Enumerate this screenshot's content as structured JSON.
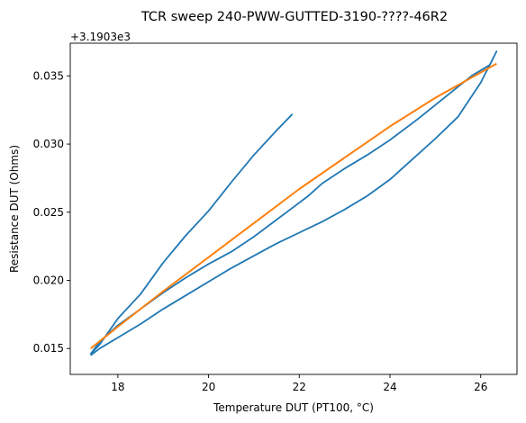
{
  "chart_data": {
    "type": "line",
    "title": "TCR sweep 240-PWW-GUTTED-3190-????-46R2",
    "xlabel": "Temperature DUT (PT100, °C)",
    "ylabel": "Resistance DUT (Ohms)",
    "y_offset_label": "+3.1903e3",
    "xlim": [
      16.95,
      26.8
    ],
    "ylim": [
      0.0131,
      0.0374
    ],
    "x_ticks": [
      18,
      20,
      22,
      24,
      26
    ],
    "x_tick_labels": [
      "18",
      "20",
      "22",
      "24",
      "26"
    ],
    "y_ticks": [
      0.015,
      0.02,
      0.025,
      0.03,
      0.035
    ],
    "y_tick_labels": [
      "0.015",
      "0.020",
      "0.025",
      "0.030",
      "0.035"
    ],
    "grid": false,
    "colors": {
      "series_measured": "#1f77b4",
      "series_fit": "#ff7f0e"
    },
    "series": [
      {
        "kind": "measured",
        "color": "#1f77b4",
        "points": [
          [
            17.4,
            0.0145
          ],
          [
            17.6,
            0.015
          ],
          [
            18.0,
            0.0158
          ],
          [
            18.5,
            0.0168
          ],
          [
            19.0,
            0.0179
          ],
          [
            19.5,
            0.0189
          ],
          [
            20.0,
            0.0199
          ],
          [
            20.5,
            0.0209
          ],
          [
            21.0,
            0.0218
          ],
          [
            21.5,
            0.0227
          ],
          [
            22.0,
            0.0235
          ],
          [
            22.5,
            0.0243
          ],
          [
            23.0,
            0.0252
          ],
          [
            23.5,
            0.0262
          ],
          [
            24.0,
            0.0274
          ],
          [
            24.5,
            0.0289
          ],
          [
            25.0,
            0.0304
          ],
          [
            25.5,
            0.032
          ],
          [
            26.0,
            0.0345
          ],
          [
            26.35,
            0.0368
          ],
          [
            26.2,
            0.0358
          ],
          [
            25.8,
            0.035
          ],
          [
            25.2,
            0.0334
          ],
          [
            24.6,
            0.0318
          ],
          [
            24.0,
            0.0303
          ],
          [
            23.5,
            0.0292
          ],
          [
            23.0,
            0.0282
          ],
          [
            22.5,
            0.0271
          ],
          [
            22.2,
            0.0262
          ],
          [
            21.8,
            0.0252
          ],
          [
            21.4,
            0.0242
          ],
          [
            21.0,
            0.0232
          ],
          [
            20.5,
            0.0221
          ],
          [
            20.0,
            0.0212
          ],
          [
            19.5,
            0.0202
          ],
          [
            19.0,
            0.0191
          ],
          [
            18.5,
            0.0179
          ],
          [
            18.0,
            0.0167
          ],
          [
            17.6,
            0.0155
          ],
          [
            17.4,
            0.0146
          ],
          [
            17.6,
            0.0153
          ],
          [
            18.0,
            0.0172
          ],
          [
            18.5,
            0.019
          ],
          [
            19.0,
            0.0213
          ],
          [
            19.5,
            0.0233
          ],
          [
            20.0,
            0.0251
          ],
          [
            20.5,
            0.0272
          ],
          [
            21.0,
            0.0292
          ],
          [
            21.5,
            0.031
          ],
          [
            21.85,
            0.0322
          ]
        ]
      },
      {
        "kind": "fit",
        "color": "#ff7f0e",
        "points": [
          [
            17.4,
            0.015
          ],
          [
            18.0,
            0.0166
          ],
          [
            19.0,
            0.0192
          ],
          [
            20.0,
            0.0217
          ],
          [
            21.0,
            0.0242
          ],
          [
            22.0,
            0.0267
          ],
          [
            23.0,
            0.029
          ],
          [
            24.0,
            0.0313
          ],
          [
            25.0,
            0.0334
          ],
          [
            26.35,
            0.0359
          ]
        ]
      }
    ]
  }
}
